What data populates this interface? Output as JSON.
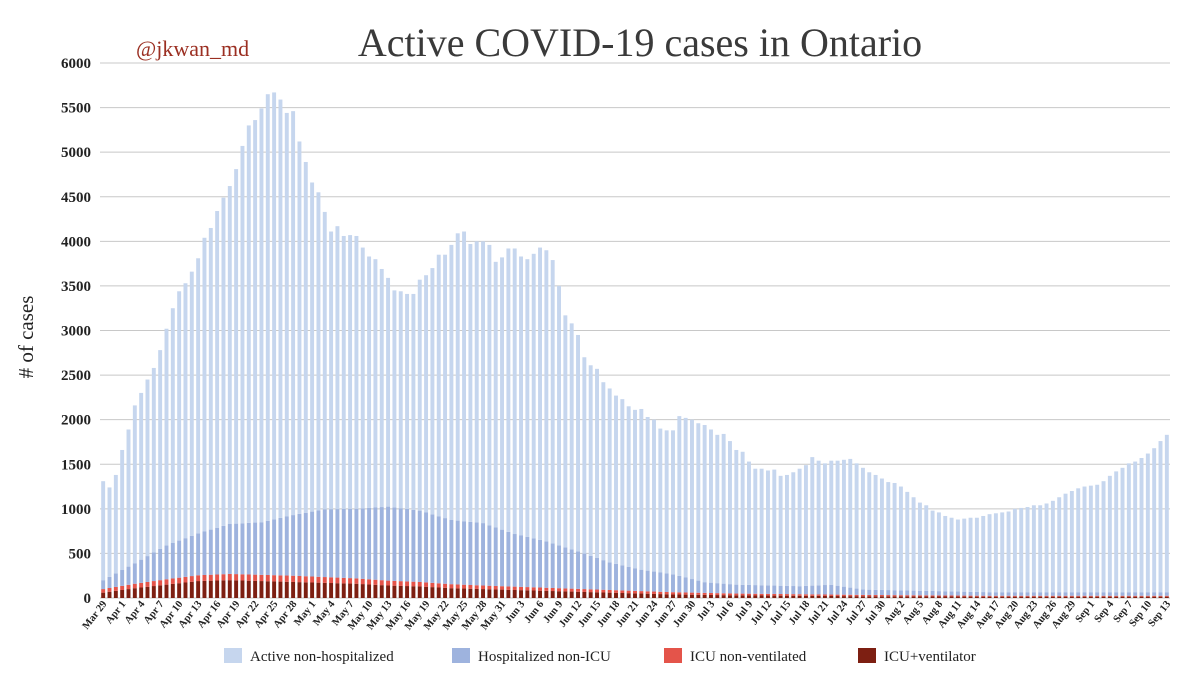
{
  "chart_data": {
    "type": "bar",
    "stacked": true,
    "title": "Active COVID-19 cases in Ontario",
    "handle": "@jkwan_md",
    "ylabel": "# of cases",
    "xlabel": "",
    "ylim": [
      0,
      6000
    ],
    "yticks": [
      0,
      500,
      1000,
      1500,
      2000,
      2500,
      3000,
      3500,
      4000,
      4500,
      5000,
      5500,
      6000
    ],
    "grid": true,
    "legend_position": "bottom",
    "start_date": "Mar 29",
    "days": 169,
    "x_tick_labels": [
      "Mar 29",
      "Apr 1",
      "Apr 4",
      "Apr 7",
      "Apr 10",
      "Apr 13",
      "Apr 16",
      "Apr 19",
      "Apr 22",
      "Apr 25",
      "Apr 28",
      "May 1",
      "May 4",
      "May 7",
      "May 10",
      "May 13",
      "May 16",
      "May 19",
      "May 22",
      "May 25",
      "May 28",
      "May 31",
      "Jun 3",
      "Jun 6",
      "Jun 9",
      "Jun 12",
      "Jun 15",
      "Jun 18",
      "Jun 21",
      "Jun 24",
      "Jun 27",
      "Jun 30",
      "Jul 3",
      "Jul 6",
      "Jul 9",
      "Jul 12",
      "Jul 15",
      "Jul 18",
      "Jul 21",
      "Jul 24",
      "Jul 27",
      "Jul 30",
      "Aug 2",
      "Aug 5",
      "Aug 8",
      "Aug 11",
      "Aug 14",
      "Aug 17",
      "Aug 20",
      "Aug 23",
      "Aug 26",
      "Aug 29",
      "Sep 1",
      "Sep 4",
      "Sep 7",
      "Sep 10",
      "Sep 13"
    ],
    "series_colors": [
      "#c6d6ee",
      "#9eb3de",
      "#e4544a",
      "#7d1f12"
    ],
    "series": [
      {
        "name": "Active non-hospitalized",
        "color": "#c6d6ee",
        "total_keyframes": [
          [
            0,
            1310
          ],
          [
            1,
            1240
          ],
          [
            2,
            1380
          ],
          [
            3,
            1660
          ],
          [
            4,
            1890
          ],
          [
            5,
            2160
          ],
          [
            6,
            2300
          ],
          [
            7,
            2450
          ],
          [
            8,
            2580
          ],
          [
            9,
            2780
          ],
          [
            10,
            3020
          ],
          [
            11,
            3250
          ],
          [
            12,
            3440
          ],
          [
            13,
            3530
          ],
          [
            14,
            3660
          ],
          [
            15,
            3810
          ],
          [
            16,
            4040
          ],
          [
            17,
            4150
          ],
          [
            18,
            4340
          ],
          [
            19,
            4490
          ],
          [
            20,
            4620
          ],
          [
            21,
            4810
          ],
          [
            22,
            5070
          ],
          [
            23,
            5300
          ],
          [
            24,
            5360
          ],
          [
            25,
            5490
          ],
          [
            26,
            5650
          ],
          [
            27,
            5670
          ],
          [
            28,
            5590
          ],
          [
            29,
            5440
          ],
          [
            30,
            5460
          ],
          [
            31,
            5120
          ],
          [
            32,
            4890
          ],
          [
            33,
            4660
          ],
          [
            34,
            4550
          ],
          [
            35,
            4330
          ],
          [
            36,
            4110
          ],
          [
            37,
            4170
          ],
          [
            38,
            4060
          ],
          [
            39,
            4070
          ],
          [
            40,
            4060
          ],
          [
            41,
            3930
          ],
          [
            42,
            3830
          ],
          [
            43,
            3800
          ],
          [
            44,
            3690
          ],
          [
            45,
            3590
          ],
          [
            46,
            3450
          ],
          [
            47,
            3440
          ],
          [
            48,
            3410
          ],
          [
            49,
            3410
          ],
          [
            50,
            3570
          ],
          [
            51,
            3620
          ],
          [
            52,
            3700
          ],
          [
            53,
            3850
          ],
          [
            54,
            3850
          ],
          [
            55,
            3960
          ],
          [
            56,
            4090
          ],
          [
            57,
            4110
          ],
          [
            58,
            3970
          ],
          [
            59,
            4000
          ],
          [
            60,
            4000
          ],
          [
            61,
            3960
          ],
          [
            62,
            3770
          ],
          [
            63,
            3820
          ],
          [
            64,
            3920
          ],
          [
            65,
            3920
          ],
          [
            66,
            3830
          ],
          [
            67,
            3800
          ],
          [
            68,
            3860
          ],
          [
            69,
            3930
          ],
          [
            70,
            3900
          ],
          [
            71,
            3790
          ],
          [
            72,
            3500
          ],
          [
            73,
            3170
          ],
          [
            74,
            3080
          ],
          [
            75,
            2950
          ],
          [
            76,
            2700
          ],
          [
            77,
            2610
          ],
          [
            78,
            2570
          ],
          [
            79,
            2420
          ],
          [
            80,
            2350
          ],
          [
            81,
            2270
          ],
          [
            82,
            2230
          ],
          [
            83,
            2150
          ],
          [
            84,
            2110
          ],
          [
            85,
            2120
          ],
          [
            86,
            2030
          ],
          [
            87,
            2000
          ],
          [
            88,
            1900
          ],
          [
            89,
            1880
          ],
          [
            90,
            1880
          ],
          [
            91,
            2040
          ],
          [
            92,
            2020
          ],
          [
            93,
            2000
          ],
          [
            94,
            1960
          ],
          [
            95,
            1940
          ],
          [
            96,
            1890
          ],
          [
            97,
            1830
          ],
          [
            98,
            1840
          ],
          [
            99,
            1760
          ],
          [
            100,
            1660
          ],
          [
            101,
            1640
          ],
          [
            102,
            1530
          ],
          [
            103,
            1450
          ],
          [
            104,
            1450
          ],
          [
            105,
            1430
          ],
          [
            106,
            1440
          ],
          [
            107,
            1370
          ],
          [
            108,
            1380
          ],
          [
            109,
            1410
          ],
          [
            110,
            1450
          ],
          [
            111,
            1490
          ],
          [
            112,
            1580
          ],
          [
            113,
            1540
          ],
          [
            114,
            1510
          ],
          [
            115,
            1540
          ],
          [
            116,
            1540
          ],
          [
            117,
            1550
          ],
          [
            118,
            1560
          ],
          [
            119,
            1510
          ],
          [
            120,
            1460
          ],
          [
            121,
            1410
          ],
          [
            122,
            1380
          ],
          [
            123,
            1340
          ],
          [
            124,
            1300
          ],
          [
            125,
            1290
          ],
          [
            126,
            1250
          ],
          [
            127,
            1190
          ],
          [
            128,
            1130
          ],
          [
            129,
            1070
          ],
          [
            130,
            1040
          ],
          [
            131,
            980
          ],
          [
            132,
            960
          ],
          [
            133,
            920
          ],
          [
            134,
            900
          ],
          [
            135,
            880
          ],
          [
            136,
            890
          ],
          [
            137,
            900
          ],
          [
            138,
            900
          ],
          [
            139,
            920
          ],
          [
            140,
            940
          ],
          [
            141,
            950
          ],
          [
            142,
            960
          ],
          [
            143,
            970
          ],
          [
            144,
            1000
          ],
          [
            145,
            1010
          ],
          [
            146,
            1020
          ],
          [
            147,
            1040
          ],
          [
            148,
            1040
          ],
          [
            149,
            1060
          ],
          [
            150,
            1090
          ],
          [
            151,
            1130
          ],
          [
            152,
            1170
          ],
          [
            153,
            1200
          ],
          [
            154,
            1230
          ],
          [
            155,
            1250
          ],
          [
            156,
            1260
          ],
          [
            157,
            1270
          ],
          [
            158,
            1310
          ],
          [
            159,
            1370
          ],
          [
            160,
            1420
          ],
          [
            161,
            1460
          ],
          [
            162,
            1510
          ],
          [
            163,
            1530
          ],
          [
            164,
            1570
          ],
          [
            165,
            1620
          ],
          [
            166,
            1680
          ],
          [
            167,
            1760
          ],
          [
            168,
            1830
          ]
        ]
      },
      {
        "name": "Hospitalized non-ICU",
        "color": "#9eb3de",
        "keyframes": [
          [
            0,
            100
          ],
          [
            5,
            230
          ],
          [
            10,
            380
          ],
          [
            15,
            470
          ],
          [
            20,
            560
          ],
          [
            25,
            590
          ],
          [
            30,
            680
          ],
          [
            35,
            760
          ],
          [
            40,
            780
          ],
          [
            45,
            830
          ],
          [
            50,
            800
          ],
          [
            55,
            720
          ],
          [
            60,
            700
          ],
          [
            65,
            590
          ],
          [
            70,
            520
          ],
          [
            75,
            420
          ],
          [
            80,
            310
          ],
          [
            85,
            240
          ],
          [
            90,
            200
          ],
          [
            95,
            120
          ],
          [
            100,
            100
          ],
          [
            110,
            90
          ],
          [
            115,
            110
          ],
          [
            118,
            80
          ],
          [
            120,
            60
          ],
          [
            130,
            50
          ],
          [
            140,
            40
          ],
          [
            150,
            40
          ],
          [
            160,
            40
          ],
          [
            168,
            40
          ]
        ]
      },
      {
        "name": "ICU non-ventilated",
        "color": "#e4544a",
        "keyframes": [
          [
            0,
            40
          ],
          [
            10,
            60
          ],
          [
            20,
            70
          ],
          [
            30,
            70
          ],
          [
            40,
            60
          ],
          [
            50,
            50
          ],
          [
            60,
            40
          ],
          [
            70,
            35
          ],
          [
            80,
            30
          ],
          [
            90,
            25
          ],
          [
            100,
            20
          ],
          [
            120,
            15
          ],
          [
            140,
            10
          ],
          [
            168,
            10
          ]
        ]
      },
      {
        "name": "ICU+ventilator",
        "color": "#7d1f12",
        "keyframes": [
          [
            0,
            60
          ],
          [
            5,
            110
          ],
          [
            10,
            150
          ],
          [
            15,
            190
          ],
          [
            20,
            200
          ],
          [
            25,
            190
          ],
          [
            30,
            180
          ],
          [
            35,
            170
          ],
          [
            40,
            160
          ],
          [
            45,
            140
          ],
          [
            50,
            130
          ],
          [
            55,
            110
          ],
          [
            60,
            100
          ],
          [
            65,
            90
          ],
          [
            70,
            80
          ],
          [
            75,
            70
          ],
          [
            80,
            60
          ],
          [
            85,
            50
          ],
          [
            90,
            40
          ],
          [
            100,
            30
          ],
          [
            110,
            25
          ],
          [
            120,
            20
          ],
          [
            140,
            15
          ],
          [
            168,
            15
          ]
        ]
      }
    ]
  }
}
